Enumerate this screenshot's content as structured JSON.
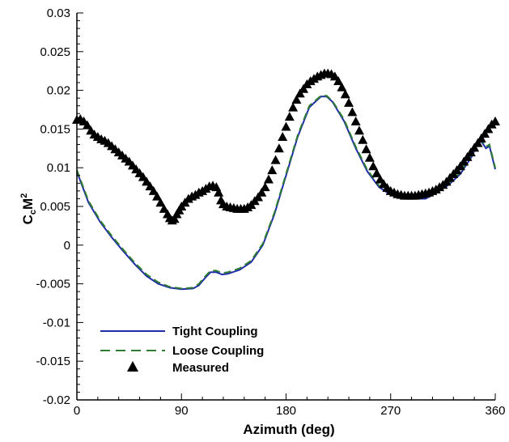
{
  "chart_data": {
    "type": "line",
    "xlabel": "Azimuth (deg)",
    "ylabel": {
      "base": "C",
      "sub": "c",
      "mid": "M",
      "sup": "2"
    },
    "xlim": [
      0,
      360
    ],
    "ylim": [
      -0.02,
      0.03
    ],
    "x_ticks": [
      0,
      90,
      180,
      270,
      360
    ],
    "x_tick_labels": [
      "0",
      "90",
      "180",
      "270",
      "360"
    ],
    "y_ticks": [
      -0.02,
      -0.015,
      -0.01,
      -0.005,
      0,
      0.005,
      0.01,
      0.015,
      0.02,
      0.025,
      0.03
    ],
    "y_tick_labels": [
      "-0.02",
      "-0.015",
      "-0.01",
      "-0.005",
      "0",
      "0.005",
      "0.01",
      "0.015",
      "0.02",
      "0.025",
      "0.03"
    ],
    "grid": false,
    "legend_position": "bottom-left",
    "series": [
      {
        "name": "Tight Coupling",
        "style": "solid",
        "color": "#1f2ca8",
        "points": [
          [
            0,
            0.0095
          ],
          [
            5,
            0.0075
          ],
          [
            10,
            0.0055
          ],
          [
            20,
            0.003
          ],
          [
            30,
            0.001
          ],
          [
            40,
            -0.0008
          ],
          [
            50,
            -0.0025
          ],
          [
            60,
            -0.004
          ],
          [
            70,
            -0.005
          ],
          [
            80,
            -0.0055
          ],
          [
            90,
            -0.0057
          ],
          [
            100,
            -0.0056
          ],
          [
            105,
            -0.0052
          ],
          [
            110,
            -0.0043
          ],
          [
            115,
            -0.0035
          ],
          [
            120,
            -0.0035
          ],
          [
            125,
            -0.0038
          ],
          [
            130,
            -0.0037
          ],
          [
            140,
            -0.0032
          ],
          [
            150,
            -0.0022
          ],
          [
            160,
            0.0
          ],
          [
            170,
            0.004
          ],
          [
            180,
            0.009
          ],
          [
            190,
            0.014
          ],
          [
            200,
            0.0178
          ],
          [
            210,
            0.0192
          ],
          [
            215,
            0.0192
          ],
          [
            220,
            0.0185
          ],
          [
            230,
            0.016
          ],
          [
            240,
            0.0125
          ],
          [
            250,
            0.0095
          ],
          [
            260,
            0.0075
          ],
          [
            270,
            0.0065
          ],
          [
            280,
            0.006
          ],
          [
            290,
            0.006
          ],
          [
            300,
            0.006
          ],
          [
            310,
            0.0068
          ],
          [
            320,
            0.0078
          ],
          [
            330,
            0.0092
          ],
          [
            340,
            0.0115
          ],
          [
            345,
            0.0132
          ],
          [
            348,
            0.0134
          ],
          [
            352,
            0.0125
          ],
          [
            355,
            0.0128
          ],
          [
            358,
            0.011
          ],
          [
            360,
            0.0098
          ]
        ]
      },
      {
        "name": "Loose Coupling",
        "style": "dashed",
        "color": "#2e7d32",
        "points": [
          [
            0,
            0.0097
          ],
          [
            5,
            0.0077
          ],
          [
            10,
            0.0057
          ],
          [
            20,
            0.0032
          ],
          [
            30,
            0.0012
          ],
          [
            40,
            -0.0006
          ],
          [
            50,
            -0.0023
          ],
          [
            60,
            -0.0038
          ],
          [
            70,
            -0.0048
          ],
          [
            80,
            -0.0054
          ],
          [
            90,
            -0.0056
          ],
          [
            100,
            -0.0055
          ],
          [
            105,
            -0.005
          ],
          [
            110,
            -0.0041
          ],
          [
            115,
            -0.0033
          ],
          [
            120,
            -0.0033
          ],
          [
            125,
            -0.0036
          ],
          [
            130,
            -0.0035
          ],
          [
            140,
            -0.003
          ],
          [
            150,
            -0.002
          ],
          [
            160,
            0.0002
          ],
          [
            170,
            0.0042
          ],
          [
            180,
            0.0092
          ],
          [
            190,
            0.0142
          ],
          [
            200,
            0.018
          ],
          [
            210,
            0.0193
          ],
          [
            215,
            0.0193
          ],
          [
            220,
            0.0186
          ],
          [
            230,
            0.0162
          ],
          [
            240,
            0.0127
          ],
          [
            250,
            0.0097
          ],
          [
            260,
            0.0077
          ],
          [
            270,
            0.0067
          ],
          [
            280,
            0.0062
          ],
          [
            290,
            0.0061
          ],
          [
            300,
            0.0061
          ],
          [
            310,
            0.0069
          ],
          [
            320,
            0.008
          ],
          [
            330,
            0.0094
          ],
          [
            340,
            0.0118
          ],
          [
            345,
            0.0135
          ],
          [
            348,
            0.0137
          ],
          [
            352,
            0.0127
          ],
          [
            355,
            0.013
          ],
          [
            358,
            0.0112
          ],
          [
            360,
            0.01
          ]
        ]
      },
      {
        "name": "Measured",
        "style": "markers",
        "marker": "triangle",
        "color": "#000000",
        "points": [
          [
            0,
            0.0162
          ],
          [
            3,
            0.0163
          ],
          [
            6,
            0.016
          ],
          [
            9,
            0.0155
          ],
          [
            12,
            0.0148
          ],
          [
            15,
            0.0143
          ],
          [
            18,
            0.014
          ],
          [
            21,
            0.0137
          ],
          [
            24,
            0.0135
          ],
          [
            27,
            0.0132
          ],
          [
            30,
            0.0128
          ],
          [
            33,
            0.0124
          ],
          [
            36,
            0.012
          ],
          [
            39,
            0.0116
          ],
          [
            42,
            0.0112
          ],
          [
            45,
            0.0108
          ],
          [
            48,
            0.0103
          ],
          [
            51,
            0.0098
          ],
          [
            54,
            0.0093
          ],
          [
            57,
            0.0088
          ],
          [
            60,
            0.0082
          ],
          [
            63,
            0.0076
          ],
          [
            66,
            0.007
          ],
          [
            69,
            0.0063
          ],
          [
            72,
            0.0055
          ],
          [
            75,
            0.0047
          ],
          [
            78,
            0.004
          ],
          [
            80,
            0.0035
          ],
          [
            82,
            0.0032
          ],
          [
            84,
            0.0034
          ],
          [
            86,
            0.004
          ],
          [
            88,
            0.0045
          ],
          [
            90,
            0.005
          ],
          [
            93,
            0.0055
          ],
          [
            96,
            0.006
          ],
          [
            99,
            0.0063
          ],
          [
            102,
            0.0065
          ],
          [
            105,
            0.0068
          ],
          [
            108,
            0.007
          ],
          [
            111,
            0.0073
          ],
          [
            114,
            0.0076
          ],
          [
            117,
            0.0077
          ],
          [
            120,
            0.0075
          ],
          [
            122,
            0.0068
          ],
          [
            124,
            0.0058
          ],
          [
            126,
            0.0053
          ],
          [
            129,
            0.005
          ],
          [
            132,
            0.0049
          ],
          [
            135,
            0.0048
          ],
          [
            138,
            0.0047
          ],
          [
            141,
            0.0047
          ],
          [
            144,
            0.0047
          ],
          [
            147,
            0.0049
          ],
          [
            150,
            0.0052
          ],
          [
            153,
            0.0057
          ],
          [
            156,
            0.0062
          ],
          [
            159,
            0.0068
          ],
          [
            162,
            0.0075
          ],
          [
            165,
            0.0085
          ],
          [
            168,
            0.0097
          ],
          [
            171,
            0.011
          ],
          [
            174,
            0.0125
          ],
          [
            177,
            0.014
          ],
          [
            180,
            0.0153
          ],
          [
            183,
            0.0166
          ],
          [
            186,
            0.0178
          ],
          [
            189,
            0.0188
          ],
          [
            192,
            0.0196
          ],
          [
            195,
            0.0202
          ],
          [
            198,
            0.0208
          ],
          [
            201,
            0.0212
          ],
          [
            204,
            0.0215
          ],
          [
            207,
            0.0218
          ],
          [
            210,
            0.022
          ],
          [
            213,
            0.0222
          ],
          [
            216,
            0.0222
          ],
          [
            219,
            0.0221
          ],
          [
            222,
            0.0218
          ],
          [
            225,
            0.0212
          ],
          [
            228,
            0.0204
          ],
          [
            231,
            0.0195
          ],
          [
            234,
            0.0184
          ],
          [
            237,
            0.0172
          ],
          [
            240,
            0.016
          ],
          [
            243,
            0.0148
          ],
          [
            246,
            0.0136
          ],
          [
            249,
            0.0124
          ],
          [
            252,
            0.0113
          ],
          [
            255,
            0.0102
          ],
          [
            258,
            0.0093
          ],
          [
            261,
            0.0085
          ],
          [
            264,
            0.0079
          ],
          [
            267,
            0.0074
          ],
          [
            270,
            0.007
          ],
          [
            273,
            0.0068
          ],
          [
            276,
            0.0066
          ],
          [
            279,
            0.0065
          ],
          [
            282,
            0.0064
          ],
          [
            285,
            0.0064
          ],
          [
            288,
            0.0064
          ],
          [
            291,
            0.0064
          ],
          [
            294,
            0.0065
          ],
          [
            297,
            0.0066
          ],
          [
            300,
            0.0067
          ],
          [
            303,
            0.0068
          ],
          [
            306,
            0.007
          ],
          [
            309,
            0.0072
          ],
          [
            312,
            0.0075
          ],
          [
            315,
            0.0078
          ],
          [
            318,
            0.0082
          ],
          [
            321,
            0.0087
          ],
          [
            324,
            0.0092
          ],
          [
            327,
            0.0097
          ],
          [
            330,
            0.0102
          ],
          [
            333,
            0.0108
          ],
          [
            336,
            0.0114
          ],
          [
            339,
            0.012
          ],
          [
            342,
            0.0126
          ],
          [
            345,
            0.0132
          ],
          [
            348,
            0.0138
          ],
          [
            351,
            0.0144
          ],
          [
            354,
            0.015
          ],
          [
            357,
            0.0156
          ],
          [
            360,
            0.016
          ]
        ]
      }
    ]
  }
}
